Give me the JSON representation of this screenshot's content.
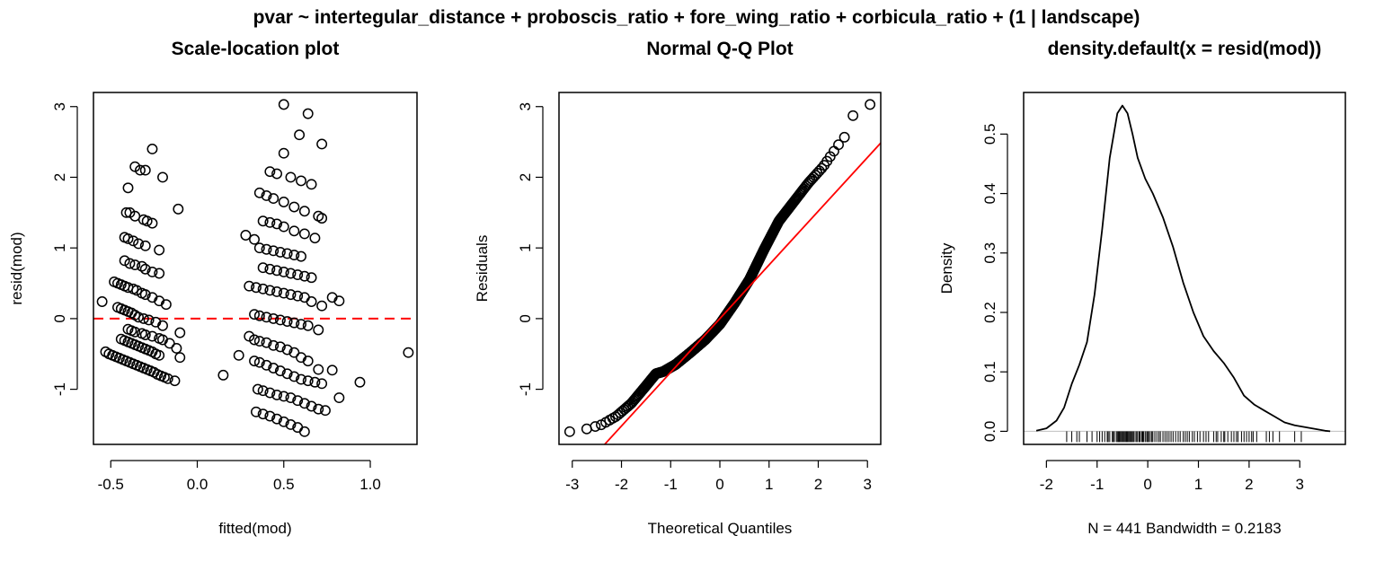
{
  "figure": {
    "main_title": "pvar ~ intertegular_distance + proboscis_ratio + fore_wing_ratio + corbicula_ratio + (1 | landscape)"
  },
  "chart_data": [
    {
      "type": "scatter",
      "title": "Scale-location plot",
      "xlabel": "fitted(mod)",
      "ylabel": "resid(mod)",
      "xlim": [
        -0.6,
        1.27
      ],
      "ylim": [
        -1.78,
        3.2
      ],
      "x_ticks": [
        -0.5,
        0.0,
        0.5,
        1.0
      ],
      "x_tick_labels": [
        "-0.5",
        "0.0",
        "0.5",
        "1.0"
      ],
      "y_ticks": [
        -1,
        0,
        1,
        2,
        3
      ],
      "y_tick_labels": [
        "-1",
        "0",
        "1",
        "2",
        "3"
      ],
      "reference_line": {
        "y": 0,
        "style": "dashed",
        "color": "#ff0000"
      },
      "points": [
        [
          -0.55,
          0.24
        ],
        [
          -0.53,
          -0.47
        ],
        [
          -0.51,
          -0.5
        ],
        [
          -0.49,
          -0.52
        ],
        [
          -0.47,
          -0.54
        ],
        [
          -0.45,
          -0.56
        ],
        [
          -0.43,
          -0.58
        ],
        [
          -0.41,
          -0.6
        ],
        [
          -0.39,
          -0.62
        ],
        [
          -0.37,
          -0.64
        ],
        [
          -0.35,
          -0.66
        ],
        [
          -0.33,
          -0.68
        ],
        [
          -0.31,
          -0.7
        ],
        [
          -0.29,
          -0.72
        ],
        [
          -0.27,
          -0.74
        ],
        [
          -0.25,
          -0.76
        ],
        [
          -0.23,
          -0.79
        ],
        [
          -0.21,
          -0.81
        ],
        [
          -0.19,
          -0.83
        ],
        [
          -0.17,
          -0.85
        ],
        [
          -0.13,
          -0.88
        ],
        [
          -0.44,
          -0.29
        ],
        [
          -0.42,
          -0.31
        ],
        [
          -0.4,
          -0.33
        ],
        [
          -0.38,
          -0.35
        ],
        [
          -0.36,
          -0.37
        ],
        [
          -0.34,
          -0.39
        ],
        [
          -0.32,
          -0.41
        ],
        [
          -0.3,
          -0.43
        ],
        [
          -0.28,
          -0.45
        ],
        [
          -0.26,
          -0.47
        ],
        [
          -0.24,
          -0.5
        ],
        [
          -0.22,
          -0.52
        ],
        [
          -0.4,
          -0.15
        ],
        [
          -0.38,
          -0.17
        ],
        [
          -0.36,
          -0.19
        ],
        [
          -0.32,
          -0.21
        ],
        [
          -0.3,
          -0.23
        ],
        [
          -0.26,
          -0.25
        ],
        [
          -0.22,
          -0.28
        ],
        [
          -0.2,
          -0.3
        ],
        [
          -0.16,
          -0.35
        ],
        [
          -0.12,
          -0.42
        ],
        [
          -0.1,
          -0.55
        ],
        [
          -0.46,
          0.16
        ],
        [
          -0.44,
          0.14
        ],
        [
          -0.42,
          0.12
        ],
        [
          -0.4,
          0.1
        ],
        [
          -0.38,
          0.08
        ],
        [
          -0.36,
          0.05
        ],
        [
          -0.34,
          0.02
        ],
        [
          -0.31,
          0.0
        ],
        [
          -0.28,
          -0.02
        ],
        [
          -0.24,
          -0.05
        ],
        [
          -0.2,
          -0.1
        ],
        [
          -0.1,
          -0.2
        ],
        [
          -0.48,
          0.52
        ],
        [
          -0.46,
          0.5
        ],
        [
          -0.44,
          0.48
        ],
        [
          -0.42,
          0.46
        ],
        [
          -0.4,
          0.44
        ],
        [
          -0.37,
          0.42
        ],
        [
          -0.35,
          0.4
        ],
        [
          -0.32,
          0.36
        ],
        [
          -0.3,
          0.34
        ],
        [
          -0.26,
          0.3
        ],
        [
          -0.22,
          0.25
        ],
        [
          -0.18,
          0.2
        ],
        [
          -0.42,
          0.82
        ],
        [
          -0.39,
          0.78
        ],
        [
          -0.36,
          0.76
        ],
        [
          -0.32,
          0.74
        ],
        [
          -0.3,
          0.7
        ],
        [
          -0.26,
          0.66
        ],
        [
          -0.22,
          0.64
        ],
        [
          -0.42,
          1.15
        ],
        [
          -0.4,
          1.13
        ],
        [
          -0.37,
          1.1
        ],
        [
          -0.34,
          1.06
        ],
        [
          -0.3,
          1.03
        ],
        [
          -0.22,
          0.97
        ],
        [
          -0.41,
          1.5
        ],
        [
          -0.39,
          1.5
        ],
        [
          -0.36,
          1.45
        ],
        [
          -0.31,
          1.4
        ],
        [
          -0.29,
          1.38
        ],
        [
          -0.26,
          1.35
        ],
        [
          -0.11,
          1.55
        ],
        [
          -0.4,
          1.85
        ],
        [
          -0.36,
          2.15
        ],
        [
          -0.33,
          2.1
        ],
        [
          -0.3,
          2.1
        ],
        [
          -0.26,
          2.4
        ],
        [
          -0.2,
          2.0
        ],
        [
          0.15,
          -0.8
        ],
        [
          0.24,
          -0.52
        ],
        [
          0.28,
          1.18
        ],
        [
          0.33,
          1.12
        ],
        [
          0.3,
          -0.25
        ],
        [
          0.33,
          -0.3
        ],
        [
          0.36,
          -0.32
        ],
        [
          0.4,
          -0.34
        ],
        [
          0.44,
          -0.38
        ],
        [
          0.48,
          -0.4
        ],
        [
          0.52,
          -0.44
        ],
        [
          0.56,
          -0.48
        ],
        [
          0.6,
          -0.55
        ],
        [
          0.64,
          -0.6
        ],
        [
          0.7,
          -0.72
        ],
        [
          0.33,
          -0.6
        ],
        [
          0.36,
          -0.62
        ],
        [
          0.4,
          -0.66
        ],
        [
          0.44,
          -0.7
        ],
        [
          0.48,
          -0.74
        ],
        [
          0.52,
          -0.78
        ],
        [
          0.56,
          -0.82
        ],
        [
          0.6,
          -0.86
        ],
        [
          0.64,
          -0.88
        ],
        [
          0.68,
          -0.9
        ],
        [
          0.72,
          -0.92
        ],
        [
          0.35,
          -1.0
        ],
        [
          0.38,
          -1.02
        ],
        [
          0.42,
          -1.05
        ],
        [
          0.46,
          -1.08
        ],
        [
          0.5,
          -1.1
        ],
        [
          0.54,
          -1.12
        ],
        [
          0.58,
          -1.16
        ],
        [
          0.62,
          -1.2
        ],
        [
          0.66,
          -1.24
        ],
        [
          0.7,
          -1.28
        ],
        [
          0.74,
          -1.3
        ],
        [
          0.34,
          -1.32
        ],
        [
          0.38,
          -1.35
        ],
        [
          0.42,
          -1.38
        ],
        [
          0.46,
          -1.42
        ],
        [
          0.5,
          -1.46
        ],
        [
          0.54,
          -1.5
        ],
        [
          0.58,
          -1.54
        ],
        [
          0.62,
          -1.6
        ],
        [
          0.33,
          0.06
        ],
        [
          0.36,
          0.04
        ],
        [
          0.4,
          0.02
        ],
        [
          0.44,
          0.0
        ],
        [
          0.48,
          -0.02
        ],
        [
          0.52,
          -0.04
        ],
        [
          0.56,
          -0.06
        ],
        [
          0.6,
          -0.08
        ],
        [
          0.64,
          -0.1
        ],
        [
          0.7,
          -0.16
        ],
        [
          0.3,
          0.46
        ],
        [
          0.34,
          0.44
        ],
        [
          0.38,
          0.42
        ],
        [
          0.42,
          0.4
        ],
        [
          0.46,
          0.38
        ],
        [
          0.5,
          0.36
        ],
        [
          0.54,
          0.34
        ],
        [
          0.58,
          0.32
        ],
        [
          0.62,
          0.3
        ],
        [
          0.66,
          0.24
        ],
        [
          0.72,
          0.18
        ],
        [
          0.38,
          0.72
        ],
        [
          0.42,
          0.7
        ],
        [
          0.46,
          0.68
        ],
        [
          0.5,
          0.66
        ],
        [
          0.54,
          0.64
        ],
        [
          0.58,
          0.62
        ],
        [
          0.62,
          0.6
        ],
        [
          0.66,
          0.58
        ],
        [
          0.36,
          1.0
        ],
        [
          0.4,
          0.98
        ],
        [
          0.44,
          0.96
        ],
        [
          0.48,
          0.94
        ],
        [
          0.52,
          0.92
        ],
        [
          0.56,
          0.9
        ],
        [
          0.6,
          0.88
        ],
        [
          0.38,
          1.38
        ],
        [
          0.42,
          1.36
        ],
        [
          0.46,
          1.34
        ],
        [
          0.5,
          1.3
        ],
        [
          0.56,
          1.24
        ],
        [
          0.62,
          1.2
        ],
        [
          0.68,
          1.14
        ],
        [
          0.36,
          1.78
        ],
        [
          0.4,
          1.74
        ],
        [
          0.44,
          1.7
        ],
        [
          0.5,
          1.65
        ],
        [
          0.56,
          1.58
        ],
        [
          0.62,
          1.52
        ],
        [
          0.7,
          1.45
        ],
        [
          0.72,
          1.42
        ],
        [
          0.42,
          2.08
        ],
        [
          0.46,
          2.05
        ],
        [
          0.5,
          2.34
        ],
        [
          0.54,
          2.0
        ],
        [
          0.6,
          1.95
        ],
        [
          0.66,
          1.9
        ],
        [
          0.5,
          3.03
        ],
        [
          0.59,
          2.6
        ],
        [
          0.64,
          2.9
        ],
        [
          0.72,
          2.47
        ],
        [
          0.78,
          -0.73
        ],
        [
          0.78,
          0.3
        ],
        [
          0.82,
          0.25
        ],
        [
          0.82,
          -1.12
        ],
        [
          0.94,
          -0.9
        ],
        [
          1.22,
          -0.48
        ]
      ]
    },
    {
      "type": "scatter",
      "title": "Normal Q-Q Plot",
      "xlabel": "Theoretical Quantiles",
      "ylabel": "Residuals",
      "xlim": [
        -3.27,
        3.27
      ],
      "ylim": [
        -1.78,
        3.2
      ],
      "x_ticks": [
        -3,
        -2,
        -1,
        0,
        1,
        2,
        3
      ],
      "x_tick_labels": [
        "-3",
        "-2",
        "-1",
        "0",
        "1",
        "2",
        "3"
      ],
      "y_ticks": [
        -1,
        0,
        1,
        2,
        3
      ],
      "y_tick_labels": [
        "-1",
        "0",
        "1",
        "2",
        "3"
      ],
      "n": 441,
      "reference_line": {
        "intercept": 0.0,
        "slope": 0.76,
        "color": "#ff0000"
      },
      "curve_knots": [
        [
          -3.05,
          -1.6
        ],
        [
          -2.7,
          -1.56
        ],
        [
          -2.4,
          -1.5
        ],
        [
          -2.1,
          -1.38
        ],
        [
          -1.8,
          -1.2
        ],
        [
          -1.5,
          -0.95
        ],
        [
          -1.3,
          -0.78
        ],
        [
          -1.15,
          -0.75
        ],
        [
          -0.9,
          -0.65
        ],
        [
          -0.6,
          -0.48
        ],
        [
          -0.3,
          -0.3
        ],
        [
          0.0,
          -0.08
        ],
        [
          0.3,
          0.22
        ],
        [
          0.6,
          0.55
        ],
        [
          0.9,
          0.98
        ],
        [
          1.2,
          1.38
        ],
        [
          1.5,
          1.65
        ],
        [
          1.8,
          1.92
        ],
        [
          2.1,
          2.15
        ],
        [
          2.4,
          2.45
        ],
        [
          2.57,
          2.6
        ],
        [
          2.72,
          2.9
        ],
        [
          3.05,
          3.03
        ]
      ]
    },
    {
      "type": "line",
      "title": "density.default(x = resid(mod))",
      "xlabel": "N = 441   Bandwidth = 0.2183",
      "ylabel": "Density",
      "xlim": [
        -2.45,
        3.9
      ],
      "ylim": [
        -0.022,
        0.57
      ],
      "x_ticks": [
        -2,
        -1,
        0,
        1,
        2,
        3
      ],
      "x_tick_labels": [
        "-2",
        "-1",
        "0",
        "1",
        "2",
        "3"
      ],
      "y_ticks": [
        0.0,
        0.1,
        0.2,
        0.3,
        0.4,
        0.5
      ],
      "y_tick_labels": [
        "0.0",
        "0.1",
        "0.2",
        "0.3",
        "0.4",
        "0.5"
      ],
      "baseline": {
        "y": 0,
        "color": "#bfbfbf"
      },
      "x": [
        -2.2,
        -2.0,
        -1.8,
        -1.65,
        -1.5,
        -1.35,
        -1.2,
        -1.05,
        -0.9,
        -0.75,
        -0.6,
        -0.5,
        -0.4,
        -0.3,
        -0.2,
        -0.05,
        0.1,
        0.3,
        0.5,
        0.7,
        0.9,
        1.1,
        1.3,
        1.5,
        1.7,
        1.9,
        2.1,
        2.3,
        2.5,
        2.7,
        2.9,
        3.1,
        3.3,
        3.5,
        3.6
      ],
      "y": [
        0.001,
        0.005,
        0.018,
        0.04,
        0.08,
        0.112,
        0.15,
        0.23,
        0.34,
        0.46,
        0.535,
        0.548,
        0.535,
        0.5,
        0.46,
        0.425,
        0.4,
        0.36,
        0.31,
        0.25,
        0.2,
        0.16,
        0.135,
        0.115,
        0.09,
        0.06,
        0.045,
        0.035,
        0.025,
        0.015,
        0.01,
        0.007,
        0.004,
        0.001,
        0.0
      ],
      "rug": [
        -1.6,
        -1.5,
        -1.4,
        -1.35,
        -1.2,
        -1.1,
        -1.0,
        -0.95,
        -0.9,
        -0.85,
        -0.8,
        -0.78,
        -0.75,
        -0.7,
        -0.68,
        -0.66,
        -0.62,
        -0.6,
        -0.58,
        -0.56,
        -0.54,
        -0.52,
        -0.5,
        -0.48,
        -0.46,
        -0.44,
        -0.42,
        -0.4,
        -0.38,
        -0.36,
        -0.34,
        -0.32,
        -0.3,
        -0.28,
        -0.25,
        -0.22,
        -0.2,
        -0.17,
        -0.15,
        -0.12,
        -0.1,
        -0.08,
        -0.05,
        -0.02,
        0.0,
        0.02,
        0.05,
        0.08,
        0.1,
        0.14,
        0.18,
        0.22,
        0.25,
        0.3,
        0.34,
        0.38,
        0.42,
        0.46,
        0.5,
        0.55,
        0.6,
        0.64,
        0.7,
        0.74,
        0.78,
        0.82,
        0.88,
        0.92,
        0.98,
        1.03,
        1.1,
        1.15,
        1.2,
        1.3,
        1.35,
        1.38,
        1.45,
        1.5,
        1.52,
        1.58,
        1.65,
        1.7,
        1.75,
        1.78,
        1.85,
        1.9,
        1.95,
        2.0,
        2.05,
        2.08,
        2.15,
        2.34,
        2.4,
        2.47,
        2.6,
        2.9,
        3.03
      ]
    }
  ]
}
